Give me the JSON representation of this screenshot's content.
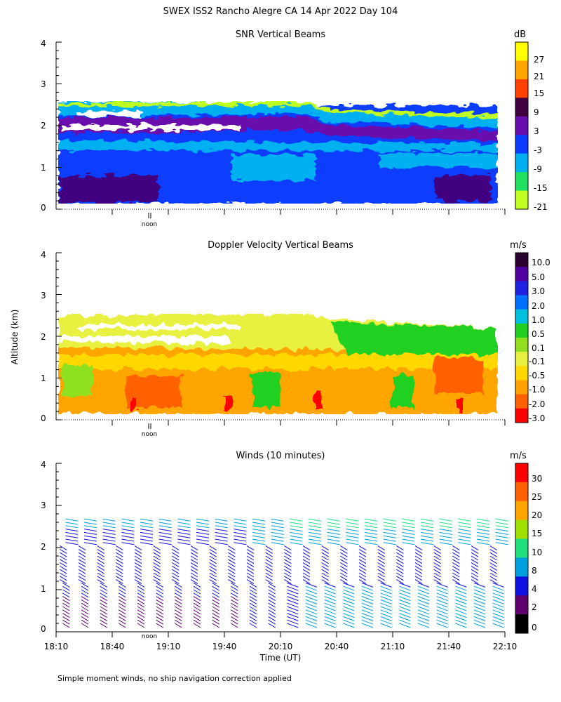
{
  "figure": {
    "title": "SWEX ISS2 Rancho Alegre CA  14 Apr 2022 Day 104",
    "footnote": "Simple moment winds, no ship navigation correction applied",
    "ylabel": "Altitude (km)",
    "xlabel": "Time (UT)",
    "noon_label": "noon"
  },
  "chart_data": [
    {
      "type": "heatmap",
      "title": "SNR Vertical Beams",
      "ylabel": "Altitude (km)",
      "ylim": [
        0,
        4
      ],
      "yticks": [
        "0",
        "1",
        "2",
        "3",
        "4"
      ],
      "x_range_minutes": [
        1090,
        1330
      ],
      "data_altitude_range_km": [
        0.15,
        2.55
      ],
      "colorbar": {
        "unit": "dB",
        "labels": [
          "27",
          "21",
          "15",
          "9",
          "3",
          "-3",
          "-9",
          "-15",
          "-21"
        ],
        "colors": [
          "#ffff00",
          "#ffa500",
          "#ff4000",
          "#400040",
          "#6a0dad",
          "#0a3cff",
          "#00b0f0",
          "#20e060",
          "#c0ff20"
        ]
      },
      "description": "Strong echo layer near 2.0-2.4 km descending to ~2.1 km after 20:10; weaker (blue) returns below."
    },
    {
      "type": "heatmap",
      "title": "Doppler Velocity Vertical Beams",
      "ylabel": "Altitude (km)",
      "ylim": [
        0,
        4
      ],
      "yticks": [
        "0",
        "1",
        "2",
        "3",
        "4"
      ],
      "x_range_minutes": [
        1090,
        1330
      ],
      "data_altitude_range_km": [
        0.15,
        2.55
      ],
      "colorbar": {
        "unit": "m/s",
        "labels": [
          "10.0",
          "5.0",
          "3.0",
          "2.0",
          "1.0",
          "0.5",
          "0.1",
          "-0.1",
          "-0.5",
          "-1.0",
          "-2.0",
          "-3.0"
        ],
        "colors": [
          "#2a0030",
          "#5000a0",
          "#2020e0",
          "#0070ff",
          "#00c0e0",
          "#20d020",
          "#90e020",
          "#e8f040",
          "#ffd800",
          "#ffa000",
          "#ff6000",
          "#ff0000"
        ]
      },
      "description": "Mostly downward motion (-0.1 to -1.0 m/s, orange) below 2 km, greener/upward near the top after 20:30."
    },
    {
      "type": "wind_barbs",
      "title": "Winds (10 minutes)",
      "ylabel": "Altitude (km)",
      "xlabel": "Time (UT)",
      "ylim": [
        0,
        4
      ],
      "yticks": [
        "0",
        "1",
        "2",
        "3",
        "4"
      ],
      "xticks": [
        "18:10",
        "18:40",
        "19:10",
        "19:40",
        "20:10",
        "20:40",
        "21:10",
        "21:40",
        "22:10"
      ],
      "x_range_minutes": [
        1090,
        1330
      ],
      "profile_interval_minutes": 10,
      "colorbar": {
        "unit": "m/s",
        "labels": [
          "30",
          "25",
          "20",
          "15",
          "10",
          "8",
          "4",
          "2",
          "0"
        ],
        "colors": [
          "#ff0000",
          "#ff6000",
          "#ffa500",
          "#a0e000",
          "#20e080",
          "#00a0e0",
          "#1010e0",
          "#600070",
          "#000000"
        ]
      },
      "description": "Light (<4 m/s) purple winds below 2 km early, strengthening to 8-15 m/s in the upper layer and later in the period."
    }
  ]
}
